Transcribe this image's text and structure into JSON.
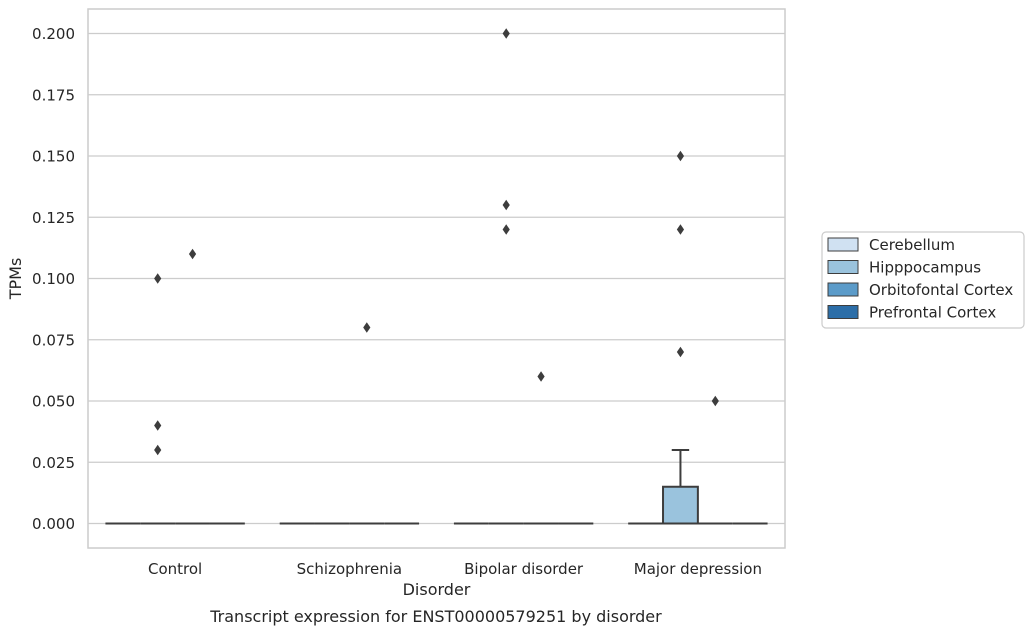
{
  "chart_data": {
    "type": "box",
    "title": "",
    "caption": "Transcript expression for ENST00000579251 by disorder",
    "xlabel": "Disorder",
    "ylabel": "TPMs",
    "ylim": [
      -0.01,
      0.21
    ],
    "y_ticks": [
      "0.000",
      "0.025",
      "0.050",
      "0.075",
      "0.100",
      "0.125",
      "0.150",
      "0.175",
      "0.200"
    ],
    "y_tick_values": [
      0,
      0.025,
      0.05,
      0.075,
      0.1,
      0.125,
      0.15,
      0.175,
      0.2
    ],
    "grid": true,
    "legend_position": "right",
    "categories": [
      "Control",
      "Schizophrenia",
      "Bipolar disorder",
      "Major depression"
    ],
    "series": [
      {
        "name": "Cerebellum",
        "color": "#d0e1f2",
        "boxes": [
          {
            "q1": 0,
            "median": 0,
            "q3": 0,
            "whisker_low": 0,
            "whisker_high": 0,
            "outliers": []
          },
          {
            "q1": 0,
            "median": 0,
            "q3": 0,
            "whisker_low": 0,
            "whisker_high": 0,
            "outliers": []
          },
          {
            "q1": 0,
            "median": 0,
            "q3": 0,
            "whisker_low": 0,
            "whisker_high": 0,
            "outliers": []
          },
          {
            "q1": 0,
            "median": 0,
            "q3": 0,
            "whisker_low": 0,
            "whisker_high": 0,
            "outliers": []
          }
        ]
      },
      {
        "name": "Hipppocampus",
        "color": "#9ac3dd",
        "boxes": [
          {
            "q1": 0,
            "median": 0,
            "q3": 0,
            "whisker_low": 0,
            "whisker_high": 0,
            "outliers": [
              0.1,
              0.04,
              0.03
            ]
          },
          {
            "q1": 0,
            "median": 0,
            "q3": 0,
            "whisker_low": 0,
            "whisker_high": 0,
            "outliers": []
          },
          {
            "q1": 0,
            "median": 0,
            "q3": 0,
            "whisker_low": 0,
            "whisker_high": 0,
            "outliers": [
              0.2,
              0.13,
              0.12
            ]
          },
          {
            "q1": 0,
            "median": 0,
            "q3": 0.015,
            "whisker_low": 0,
            "whisker_high": 0.03,
            "outliers": [
              0.15,
              0.12,
              0.07
            ]
          }
        ]
      },
      {
        "name": "Orbitofontal Cortex",
        "color": "#5b9bc9",
        "boxes": [
          {
            "q1": 0,
            "median": 0,
            "q3": 0,
            "whisker_low": 0,
            "whisker_high": 0,
            "outliers": [
              0.11
            ]
          },
          {
            "q1": 0,
            "median": 0,
            "q3": 0,
            "whisker_low": 0,
            "whisker_high": 0,
            "outliers": [
              0.08
            ]
          },
          {
            "q1": 0,
            "median": 0,
            "q3": 0,
            "whisker_low": 0,
            "whisker_high": 0,
            "outliers": [
              0.06
            ]
          },
          {
            "q1": 0,
            "median": 0,
            "q3": 0,
            "whisker_low": 0,
            "whisker_high": 0,
            "outliers": [
              0.05
            ]
          }
        ]
      },
      {
        "name": "Prefrontal Cortex",
        "color": "#2c6ea8",
        "boxes": [
          {
            "q1": 0,
            "median": 0,
            "q3": 0,
            "whisker_low": 0,
            "whisker_high": 0,
            "outliers": []
          },
          {
            "q1": 0,
            "median": 0,
            "q3": 0,
            "whisker_low": 0,
            "whisker_high": 0,
            "outliers": []
          },
          {
            "q1": 0,
            "median": 0,
            "q3": 0,
            "whisker_low": 0,
            "whisker_high": 0,
            "outliers": []
          },
          {
            "q1": 0,
            "median": 0,
            "q3": 0,
            "whisker_low": 0,
            "whisker_high": 0,
            "outliers": []
          }
        ]
      }
    ],
    "colors": {
      "grid": "#cccccc",
      "frame": "#cccccc",
      "line": "#3d3d3d",
      "marker": "#3d3d3d"
    }
  }
}
